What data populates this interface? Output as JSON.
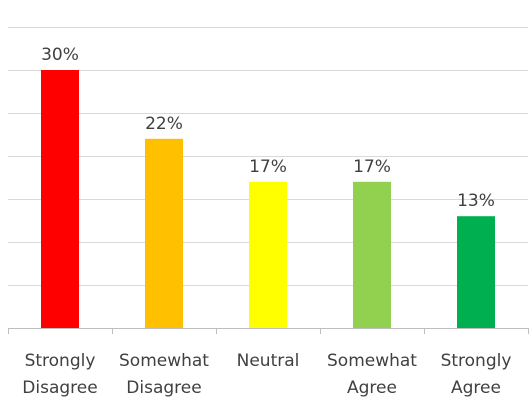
{
  "chart_data": {
    "type": "bar",
    "categories": [
      [
        "Strongly",
        "Disagree"
      ],
      [
        "Somewhat",
        "Disagree"
      ],
      [
        "Neutral"
      ],
      [
        "Somewhat",
        "Agree"
      ],
      [
        "Strongly",
        "Agree"
      ]
    ],
    "values": [
      30,
      22,
      17,
      17,
      13
    ],
    "data_labels": [
      "30%",
      "22%",
      "17%",
      "17%",
      "13%"
    ],
    "colors": [
      "#ff0000",
      "#ffc000",
      "#ffff00",
      "#92d050",
      "#00b050"
    ],
    "ylim": [
      0,
      35
    ],
    "grid": true,
    "legend": "none"
  }
}
